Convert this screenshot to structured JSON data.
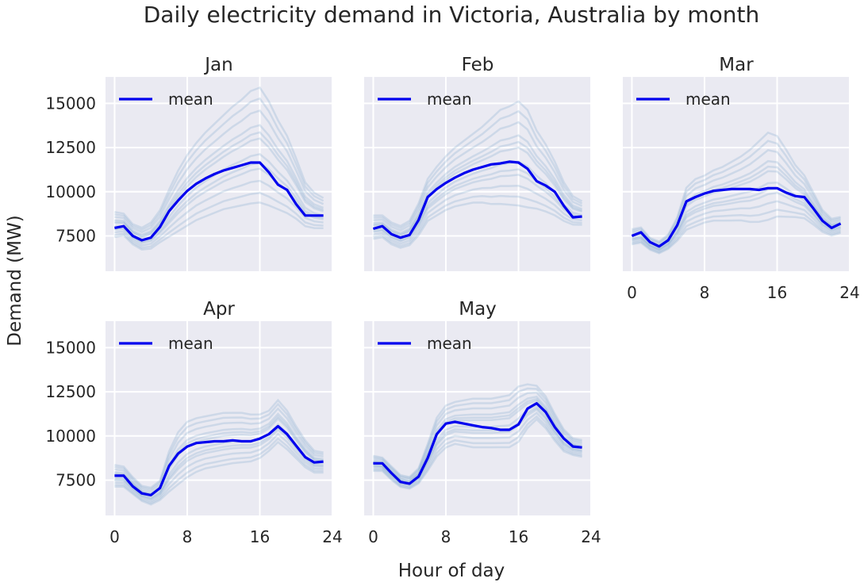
{
  "figure": {
    "title": "Daily electricity demand in Victoria, Australia by month",
    "xlabel": "Hour of day",
    "ylabel": "Demand (MW)"
  },
  "legend_label": "mean",
  "colors": {
    "mean": "#0000ee",
    "days": "#6a9ac6",
    "panel_bg": "#eaeaf2",
    "grid": "#ffffff",
    "text": "#262626"
  },
  "chart_data": [
    {
      "type": "line",
      "title": "Jan",
      "xlim": [
        -1,
        24
      ],
      "ylim": [
        5500,
        16500
      ],
      "xticks": [
        0,
        8,
        16,
        24
      ],
      "yticks": [
        7500,
        10000,
        12500,
        15000
      ],
      "xtick_labels": [],
      "ytick_labels": [
        "7500",
        "10000",
        "12500",
        "15000"
      ],
      "grid": true,
      "legend": "upper left",
      "series": [
        {
          "name": "mean",
          "x": [
            0,
            1,
            2,
            3,
            4,
            5,
            6,
            7,
            8,
            9,
            10,
            11,
            12,
            13,
            14,
            15,
            16,
            17,
            18,
            19,
            20,
            21,
            22,
            23
          ],
          "y": [
            7950,
            8050,
            7500,
            7250,
            7400,
            8000,
            8900,
            9500,
            10050,
            10450,
            10750,
            11000,
            11200,
            11350,
            11500,
            11650,
            11650,
            11100,
            10400,
            10100,
            9300,
            8650,
            8650,
            8650
          ]
        }
      ],
      "band": {
        "low": [
          7400,
          7500,
          7000,
          6700,
          6750,
          7100,
          7400,
          7700,
          8000,
          8300,
          8500,
          8700,
          8900,
          9000,
          9100,
          9200,
          9250,
          9100,
          8900,
          8700,
          8400,
          8000,
          7900,
          7900
        ],
        "high": [
          8900,
          8800,
          8200,
          8000,
          8300,
          9000,
          10200,
          11300,
          12200,
          12900,
          13500,
          14000,
          14500,
          15000,
          15400,
          15900,
          16100,
          15300,
          14200,
          13300,
          12000,
          10600,
          10000,
          9700
        ]
      }
    },
    {
      "type": "line",
      "title": "Feb",
      "xlim": [
        -1,
        24
      ],
      "ylim": [
        5500,
        16500
      ],
      "xticks": [
        0,
        8,
        16,
        24
      ],
      "yticks": [
        7500,
        10000,
        12500,
        15000
      ],
      "xtick_labels": [],
      "ytick_labels": [],
      "grid": true,
      "legend": "upper left",
      "series": [
        {
          "name": "mean",
          "x": [
            0,
            1,
            2,
            3,
            4,
            5,
            6,
            7,
            8,
            9,
            10,
            11,
            12,
            13,
            14,
            15,
            16,
            17,
            18,
            19,
            20,
            21,
            22,
            23
          ],
          "y": [
            7900,
            8050,
            7600,
            7400,
            7550,
            8400,
            9700,
            10150,
            10500,
            10800,
            11050,
            11250,
            11400,
            11550,
            11600,
            11700,
            11650,
            11300,
            10600,
            10350,
            10000,
            9200,
            8550,
            8600
          ]
        }
      ],
      "band": {
        "low": [
          7300,
          7400,
          7000,
          6800,
          6950,
          7500,
          8300,
          8600,
          8900,
          9100,
          9200,
          9300,
          9300,
          9200,
          9200,
          9150,
          9100,
          9000,
          8950,
          8800,
          8600,
          8300,
          8100,
          8100
        ],
        "high": [
          8700,
          8700,
          8300,
          8100,
          8400,
          9400,
          10800,
          11500,
          12100,
          12600,
          13000,
          13400,
          13800,
          14300,
          14800,
          15000,
          15300,
          14800,
          13600,
          12800,
          11800,
          10600,
          9800,
          9500
        ]
      }
    },
    {
      "type": "line",
      "title": "Mar",
      "xlim": [
        -1,
        24
      ],
      "ylim": [
        5500,
        16500
      ],
      "xticks": [
        0,
        8,
        16,
        24
      ],
      "yticks": [
        7500,
        10000,
        12500,
        15000
      ],
      "xtick_labels": [
        "0",
        "8",
        "16",
        "24"
      ],
      "ytick_labels": [],
      "grid": true,
      "legend": "upper left",
      "series": [
        {
          "name": "mean",
          "x": [
            0,
            1,
            2,
            3,
            4,
            5,
            6,
            7,
            8,
            9,
            10,
            11,
            12,
            13,
            14,
            15,
            16,
            17,
            18,
            19,
            20,
            21,
            22,
            23
          ],
          "y": [
            7500,
            7700,
            7150,
            6900,
            7250,
            8100,
            9450,
            9700,
            9900,
            10050,
            10100,
            10150,
            10150,
            10150,
            10100,
            10200,
            10200,
            9950,
            9750,
            9700,
            9050,
            8350,
            7950,
            8200
          ]
        }
      ],
      "band": {
        "low": [
          7000,
          7100,
          6700,
          6500,
          6750,
          7200,
          7800,
          8000,
          8200,
          8300,
          8300,
          8300,
          8300,
          8200,
          8200,
          8300,
          8500,
          8500,
          8500,
          8450,
          8100,
          7700,
          7500,
          7650
        ],
        "high": [
          7900,
          8000,
          7400,
          7200,
          7600,
          8600,
          10300,
          10800,
          11000,
          11300,
          11500,
          11800,
          12100,
          12500,
          13000,
          13500,
          13300,
          12500,
          11600,
          11000,
          10000,
          9000,
          8500,
          8600
        ]
      }
    },
    {
      "type": "line",
      "title": "Apr",
      "xlim": [
        -1,
        24
      ],
      "ylim": [
        5500,
        16500
      ],
      "xticks": [
        0,
        8,
        16,
        24
      ],
      "yticks": [
        7500,
        10000,
        12500,
        15000
      ],
      "xtick_labels": [
        "0",
        "8",
        "16",
        "24"
      ],
      "ytick_labels": [
        "7500",
        "10000",
        "12500",
        "15000"
      ],
      "grid": true,
      "legend": "upper left",
      "series": [
        {
          "name": "mean",
          "x": [
            0,
            1,
            2,
            3,
            4,
            5,
            6,
            7,
            8,
            9,
            10,
            11,
            12,
            13,
            14,
            15,
            16,
            17,
            18,
            19,
            20,
            21,
            22,
            23
          ],
          "y": [
            7750,
            7750,
            7150,
            6750,
            6650,
            7050,
            8300,
            9000,
            9400,
            9600,
            9650,
            9700,
            9700,
            9750,
            9700,
            9700,
            9850,
            10100,
            10550,
            10100,
            9450,
            8800,
            8500,
            8550
          ]
        }
      ],
      "band": {
        "low": [
          7100,
          7100,
          6700,
          6300,
          6100,
          6350,
          6800,
          7200,
          7600,
          7900,
          8100,
          8200,
          8300,
          8400,
          8450,
          8500,
          8700,
          9100,
          9600,
          9200,
          8700,
          8200,
          7900,
          7900
        ],
        "high": [
          8400,
          8300,
          7700,
          7200,
          7100,
          7500,
          9200,
          10300,
          10900,
          11100,
          11200,
          11300,
          11400,
          11400,
          11400,
          11300,
          11300,
          11500,
          12100,
          11500,
          10600,
          9800,
          9200,
          9100
        ]
      }
    },
    {
      "type": "line",
      "title": "May",
      "xlim": [
        -1,
        24
      ],
      "ylim": [
        5500,
        16500
      ],
      "xticks": [
        0,
        8,
        16,
        24
      ],
      "yticks": [
        7500,
        10000,
        12500,
        15000
      ],
      "xtick_labels": [
        "0",
        "8",
        "16",
        "24"
      ],
      "ytick_labels": [],
      "grid": true,
      "legend": "upper left",
      "series": [
        {
          "name": "mean",
          "x": [
            0,
            1,
            2,
            3,
            4,
            5,
            6,
            7,
            8,
            9,
            10,
            11,
            12,
            13,
            14,
            15,
            16,
            17,
            18,
            19,
            20,
            21,
            22,
            23
          ],
          "y": [
            8450,
            8450,
            7900,
            7400,
            7300,
            7700,
            8750,
            10100,
            10700,
            10800,
            10700,
            10600,
            10500,
            10450,
            10350,
            10350,
            10650,
            11550,
            11850,
            11350,
            10500,
            9850,
            9400,
            9350
          ]
        }
      ],
      "band": {
        "low": [
          8000,
          8000,
          7500,
          7100,
          7000,
          7300,
          8000,
          8800,
          9300,
          9500,
          9400,
          9300,
          9300,
          9300,
          9300,
          9300,
          9600,
          10400,
          10900,
          10400,
          9700,
          9100,
          8900,
          8800
        ],
        "high": [
          8900,
          8800,
          8300,
          7800,
          7700,
          8200,
          9600,
          11100,
          11800,
          12000,
          12100,
          12200,
          12200,
          12200,
          12300,
          12400,
          12900,
          13000,
          12900,
          12300,
          11300,
          10400,
          9900,
          9800
        ]
      }
    }
  ]
}
